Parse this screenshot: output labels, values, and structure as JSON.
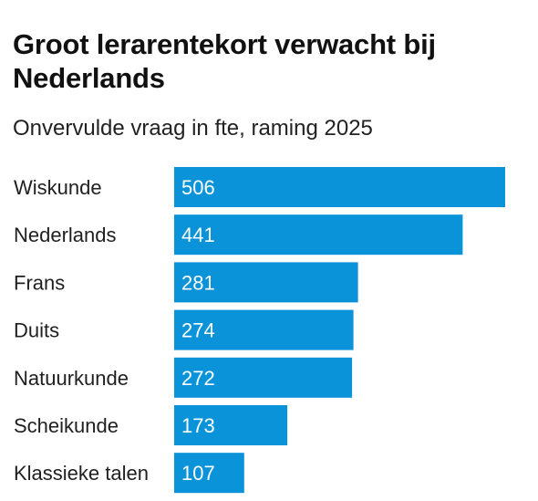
{
  "chart_data": {
    "type": "bar",
    "orientation": "horizontal",
    "title": "Groot lerarentekort verwacht bij Nederlands",
    "subtitle": "Onvervulde vraag in fte, raming 2025",
    "categories": [
      "Wiskunde",
      "Nederlands",
      "Frans",
      "Duits",
      "Natuurkunde",
      "Scheikunde",
      "Klassieke talen"
    ],
    "values": [
      506,
      441,
      281,
      274,
      272,
      173,
      107
    ],
    "bar_color": "#0a93d8",
    "grid": false,
    "legend": "none"
  }
}
